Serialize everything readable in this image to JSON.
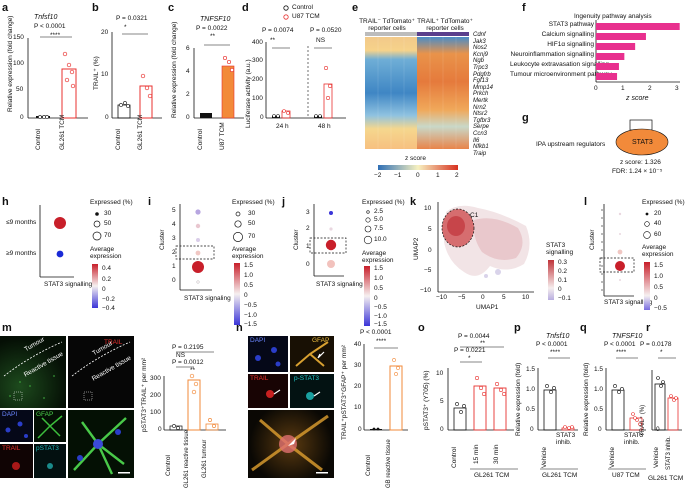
{
  "panels": {
    "a": {
      "letter": "a",
      "gene": "Tnfsf10",
      "p": "P < 0.0001",
      "sig": "****",
      "ylabel": "Relative expression (fold change)",
      "ticks": [
        "0",
        "50",
        "100",
        "150"
      ],
      "cats": [
        "Control",
        "GL261 TCM"
      ],
      "values": [
        1,
        93
      ]
    },
    "b": {
      "letter": "b",
      "p": "P = 0.0321",
      "sig": "*",
      "ylabel": "TRAIL⁺ (%)",
      "ticks": [
        "0",
        "10",
        "20"
      ],
      "cats": [
        "Control",
        "GL261 TCM"
      ],
      "values": [
        3,
        8
      ]
    },
    "c": {
      "letter": "c",
      "gene": "TNFSF10",
      "p": "P = 0.0022",
      "sig": "**",
      "ylabel": "Relative expression (fold change)",
      "ticks": [
        "0",
        "2",
        "4",
        "6"
      ],
      "cats": [
        "Control",
        "U87 TCM"
      ],
      "values": [
        1,
        4.5
      ]
    },
    "d": {
      "letter": "d",
      "legend": [
        "Control",
        "U87 TCM"
      ],
      "p1": "P = 0.0074",
      "p2": "P = 0.0520",
      "sig1": "**",
      "sig2": "NS",
      "ylabel": "Luciferase activity (a.u.)",
      "ticks": [
        "0",
        "100",
        "200",
        "300",
        "400"
      ],
      "xt": [
        "24 h",
        "48 h"
      ]
    },
    "e": {
      "letter": "e",
      "col1": "TRAIL⁻ TdTomato⁺ reporter cells",
      "col2": "TRAIL⁺ TdTomato⁺ reporter cells",
      "genes": [
        "Cdnf",
        "Jak3",
        "Nos2",
        "Kcnj9",
        "Ngb",
        "Trpc3",
        "Pdgfrb",
        "Fgf13",
        "Mmp14",
        "Prkch",
        "Mertk",
        "Nrn2",
        "Ntsr2",
        "Tgfbr3",
        "Serpe",
        "Ccn3",
        "Il6",
        "Nfkb1",
        "Traip"
      ],
      "zlabel": "z score",
      "zticks": [
        "−2",
        "−1",
        "0",
        "1",
        "2"
      ]
    },
    "f": {
      "letter": "f",
      "title": "Ingenuity pathway analysis",
      "pathways": [
        "STAT3 pathway",
        "Calcium signalling",
        "HIF1α signalling",
        "Neuroinflammation signalling",
        "Leukocyte extravasation signalling",
        "Tumour microenvironment pathway"
      ],
      "values": [
        3.1,
        1.85,
        1.45,
        1.05,
        0.85,
        0.78
      ],
      "ticks": [
        "0",
        "1",
        "2",
        "3"
      ],
      "xlabel": "z score"
    },
    "g": {
      "letter": "g",
      "label": "IPA upstream regulators",
      "node": "STAT3",
      "z": "z score: 1.326",
      "fdr": "FDR: 1.24 × 10⁻⁵"
    },
    "h": {
      "letter": "h",
      "rows": [
        "≤9 months",
        "≥9 months"
      ],
      "xlabel": "STAT3 signalling",
      "exp_title": "Expressed (%)",
      "sizes": [
        "30",
        "50",
        "70"
      ],
      "avg_title": "Average expression",
      "avg_ticks": [
        "0.4",
        "0.2",
        "0",
        "−0.2",
        "−0.4"
      ]
    },
    "i": {
      "letter": "i",
      "ylabel": "Cluster",
      "yt": [
        "5",
        "4",
        "3",
        "2",
        "1",
        "0"
      ],
      "xlabel": "STAT3 signaling",
      "exp_title": "Expressed (%)",
      "sizes": [
        "30",
        "50",
        "70"
      ],
      "avg_title": "Average expression",
      "avg_ticks": [
        "1.5",
        "1.0",
        "0.5",
        "0",
        "−0.5",
        "−1.0",
        "−1.5"
      ]
    },
    "j": {
      "letter": "j",
      "ylabel": "Cluster",
      "yt": [
        "3",
        "2",
        "1",
        "0"
      ],
      "xlabel": "STAT3 signaling",
      "exp_title": "Expressed (%)",
      "sizes": [
        "2.5",
        "5.0",
        "7.5",
        "10.0"
      ],
      "avg_title": "Average expression",
      "avg_ticks": [
        "1.5",
        "1.0",
        "0.5",
        "0",
        "−0.5",
        "−1.0",
        "−1.5"
      ]
    },
    "k": {
      "letter": "k",
      "cl": "C1",
      "xlabel": "UMAP1",
      "ylabel": "UMAP2",
      "xt": [
        "−10",
        "−5",
        "0",
        "5",
        "10"
      ],
      "yt": [
        "10",
        "5",
        "0",
        "−5",
        "−10"
      ],
      "leg_title": "STAT3 signalling",
      "leg_ticks": [
        "0.3",
        "0.2",
        "0.1",
        "0",
        "−0.1"
      ]
    },
    "l": {
      "letter": "l",
      "ylabel": "Cluster",
      "xlabel": "STAT3 signalling",
      "exp_title": "Expressed (%)",
      "sizes": [
        "20",
        "40",
        "60"
      ],
      "avg_title": "Average expression",
      "avg_ticks": [
        "1.5",
        "1.0",
        "0.5",
        "0",
        "−0.5"
      ]
    },
    "m": {
      "letter": "m",
      "trail": "TRAIL",
      "tumour": "Tumour",
      "reactive": "Reactive tissue",
      "dapi": "DAPI",
      "gfap": "GFAP",
      "pstat": "pSTAT3",
      "p1": "P = 0.2195",
      "p2": "P = 0.0012",
      "ns": "NS",
      "sig": "**",
      "ylabel": "pSTAT3⁺TRAIL⁺ per mm²",
      "ticks": [
        "0",
        "100",
        "200",
        "300"
      ],
      "cats": [
        "Control",
        "GL261 reactive tissue",
        "GL261 tumour"
      ]
    },
    "n": {
      "letter": "n",
      "dapi": "DAPI",
      "gfap": "GFAP",
      "trail": "TRAIL",
      "pstat": "p-STAT3",
      "p": "P < 0.0001",
      "sig": "****",
      "ylabel": "TRAIL⁺pSTAT3⁺GFAP⁺ per mm²",
      "ticks": [
        "0",
        "10",
        "20",
        "30",
        "40"
      ],
      "cats": [
        "Control",
        "GB reactive tissue"
      ]
    },
    "o": {
      "letter": "o",
      "p1": "P = 0.0044",
      "p2": "P = 0.0221",
      "sig1": "**",
      "sig2": "*",
      "ylabel": "pSTAT3⁺ (Y705) (%)",
      "ticks": [
        "0",
        "5",
        "10"
      ],
      "cats": [
        "Control",
        "15 min",
        "30 min"
      ],
      "group": "GL261 TCM"
    },
    "p": {
      "letter": "p",
      "gene": "Tnfsf10",
      "p": "P < 0.0001",
      "sig": "****",
      "ylabel": "Relative expression (fold)",
      "ticks": [
        "0",
        "0.5",
        "1.0",
        "1.5"
      ],
      "cats": [
        "Vehicle",
        "STAT3 inhib."
      ],
      "group": "GL261 TCM"
    },
    "q": {
      "letter": "q",
      "gene": "TNFSF10",
      "p": "P < 0.0001",
      "sig": "****",
      "ylabel": "Relative expression (fold)",
      "ticks": [
        "0",
        "0.5",
        "1.0",
        "1.5"
      ],
      "cats": [
        "Vehicle",
        "STAT3 inhib."
      ],
      "group": "U87 TCM"
    },
    "r": {
      "letter": "r",
      "p": "P = 0.0178",
      "sig": "*",
      "ylabel": "TRAIL⁺ (%)",
      "ticks": [
        "0",
        "10",
        "20",
        "30"
      ],
      "cats": [
        "Vehicle",
        "STAT3 inhib."
      ],
      "group": "GL261 TCM"
    }
  },
  "colors": {
    "red": "#e8312f",
    "pink": "#e8308e",
    "orange": "#f28a3a",
    "teal": "#20b8b8"
  }
}
